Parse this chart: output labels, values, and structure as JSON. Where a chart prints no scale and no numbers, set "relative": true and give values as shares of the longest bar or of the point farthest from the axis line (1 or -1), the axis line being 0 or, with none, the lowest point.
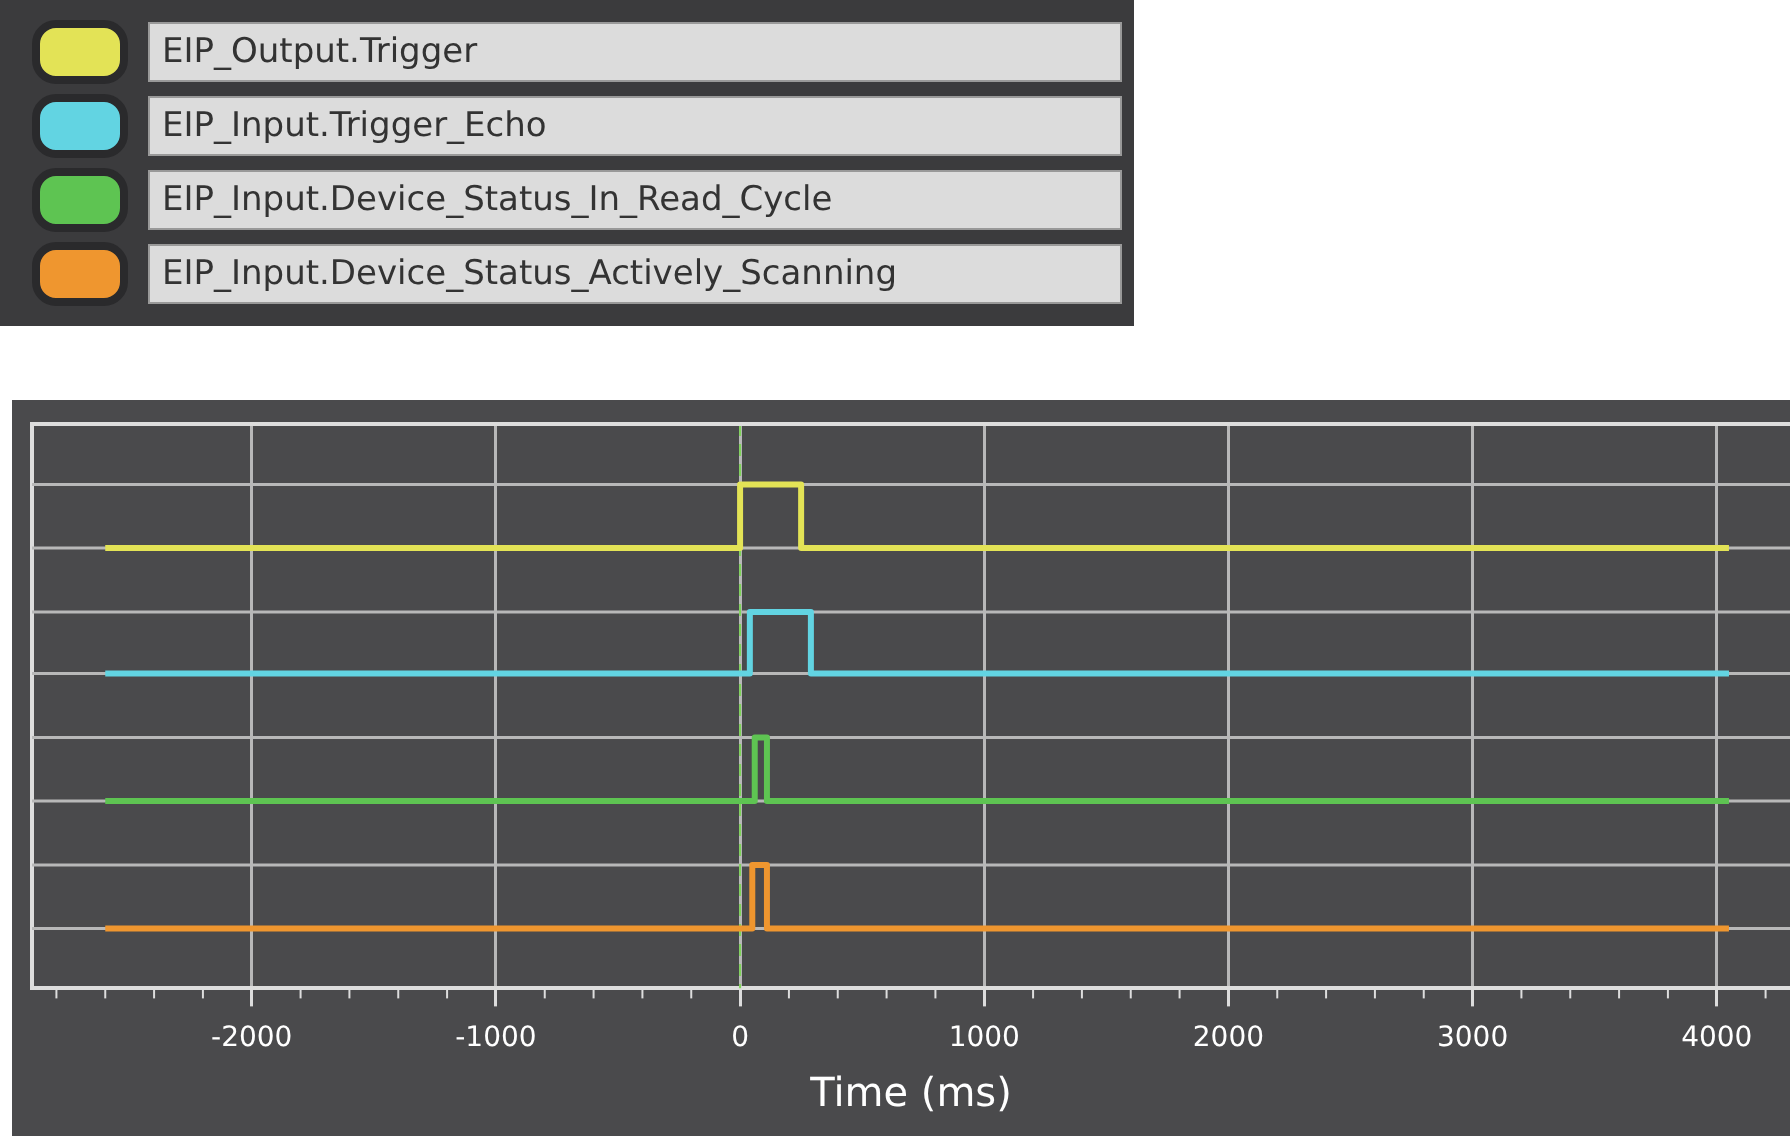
{
  "chart_data": {
    "type": "step",
    "xlabel": "Time (ms)",
    "relative": true,
    "grid": true,
    "legend": "top left",
    "line_style": "solid",
    "marker": "none",
    "xlim": [
      -2900,
      4300
    ],
    "xticks": [
      -2000,
      -1000,
      0,
      1000,
      2000,
      3000,
      4000
    ],
    "ref_lines": [
      {
        "axis": "x",
        "value": 0,
        "color": "#7fd35a",
        "line_style": "dashed"
      }
    ],
    "series": [
      {
        "name": "EIP_Output.Trigger",
        "color": "#e3e356",
        "x": [
          -2600,
          0,
          250,
          4050
        ],
        "values": [
          0.874,
          1,
          0.874,
          0.874
        ]
      },
      {
        "name": "EIP_Input.Trigger_Echo",
        "color": "#62d4e2",
        "x": [
          -2600,
          40,
          290,
          4050
        ],
        "values": [
          0.625,
          0.747,
          0.625,
          0.625
        ]
      },
      {
        "name": "EIP_Input.Device_Status_In_Read_Cycle",
        "color": "#5ec452",
        "x": [
          -2600,
          60,
          110,
          4050
        ],
        "values": [
          0.372,
          0.498,
          0.372,
          0.372
        ]
      },
      {
        "name": "EIP_Input.Device_Status_Actively_Scanning",
        "color": "#ef962f",
        "x": [
          -2600,
          50,
          110,
          4050
        ],
        "values": [
          0.119,
          0.245,
          0.119,
          0.119
        ]
      }
    ]
  }
}
